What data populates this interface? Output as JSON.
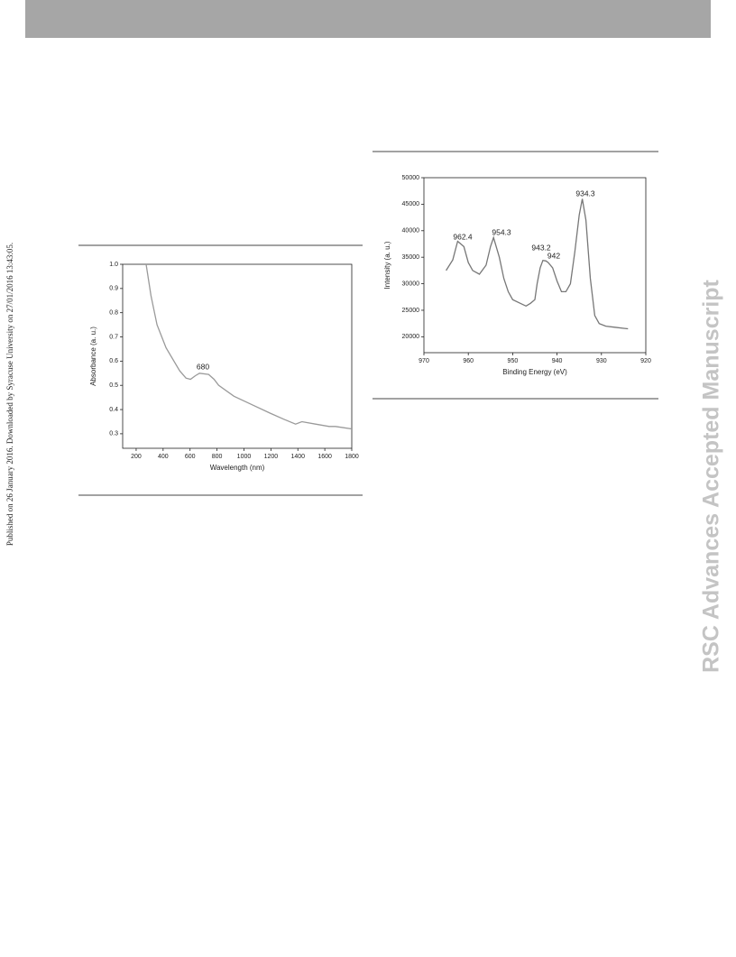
{
  "side_note": "Published on 26 January 2016. Downloaded by Syracuse University on 27/01/2016 13:43:05.",
  "watermark": "RSC Advances Accepted Manuscript",
  "chart_data": [
    {
      "type": "line",
      "x_label": "Wavelength (nm)",
      "y_label": "Absorbance (a. u.)",
      "xlim": [
        100,
        1800
      ],
      "ylim": [
        0.24,
        1.0
      ],
      "xticks": [
        200,
        400,
        600,
        800,
        1000,
        1200,
        1400,
        1600,
        1800
      ],
      "yticks": [
        0.3,
        0.4,
        0.5,
        0.6,
        0.7,
        0.8,
        0.9,
        {
          "value": 1.0,
          "label": "1.0"
        }
      ],
      "color": "#9a9a9a",
      "annotations": [
        "680"
      ],
      "x": [
        274,
        310,
        355,
        422,
        523,
        570,
        603,
        640,
        670,
        738,
        778,
        812,
        926,
        1060,
        1195,
        1296,
        1383,
        1430,
        1531,
        1632,
        1679,
        1800
      ],
      "values": [
        1.0,
        0.87,
        0.75,
        0.655,
        0.56,
        0.53,
        0.525,
        0.54,
        0.55,
        0.545,
        0.525,
        0.5,
        0.455,
        0.42,
        0.385,
        0.36,
        0.34,
        0.35,
        0.34,
        0.33,
        0.33,
        0.32
      ]
    },
    {
      "type": "line",
      "x_label": "Binding Energy (eV)",
      "y_label": "Intensity (a. u.)",
      "xlim": [
        970,
        920
      ],
      "ylim": [
        17000,
        50000
      ],
      "xticks": [
        970,
        960,
        950,
        940,
        930,
        920
      ],
      "yticks": [
        20000,
        25000,
        30000,
        35000,
        40000,
        45000,
        50000
      ],
      "color": "#777777",
      "annotations": [
        "962.4",
        "954.3",
        "943.2",
        "942",
        "934.3"
      ],
      "x": [
        965,
        963.5,
        962.4,
        961,
        960,
        959,
        957.5,
        956,
        955,
        954.3,
        953,
        952,
        951,
        950,
        948,
        947,
        946,
        945,
        944.5,
        943.8,
        943.2,
        942.5,
        942,
        941,
        940,
        939,
        938,
        937,
        936,
        935,
        934.3,
        933.5,
        932.5,
        931.5,
        930.5,
        929,
        927,
        925,
        924
      ],
      "values": [
        32500,
        34500,
        38000,
        37000,
        34000,
        32500,
        31800,
        33500,
        37000,
        38700,
        35000,
        31000,
        28500,
        27000,
        26200,
        25800,
        26300,
        27000,
        30000,
        33000,
        34400,
        34300,
        34000,
        33000,
        30500,
        28500,
        28500,
        30000,
        36000,
        43000,
        46000,
        42000,
        31000,
        24000,
        22500,
        22000,
        21800,
        21600,
        21500
      ]
    }
  ]
}
